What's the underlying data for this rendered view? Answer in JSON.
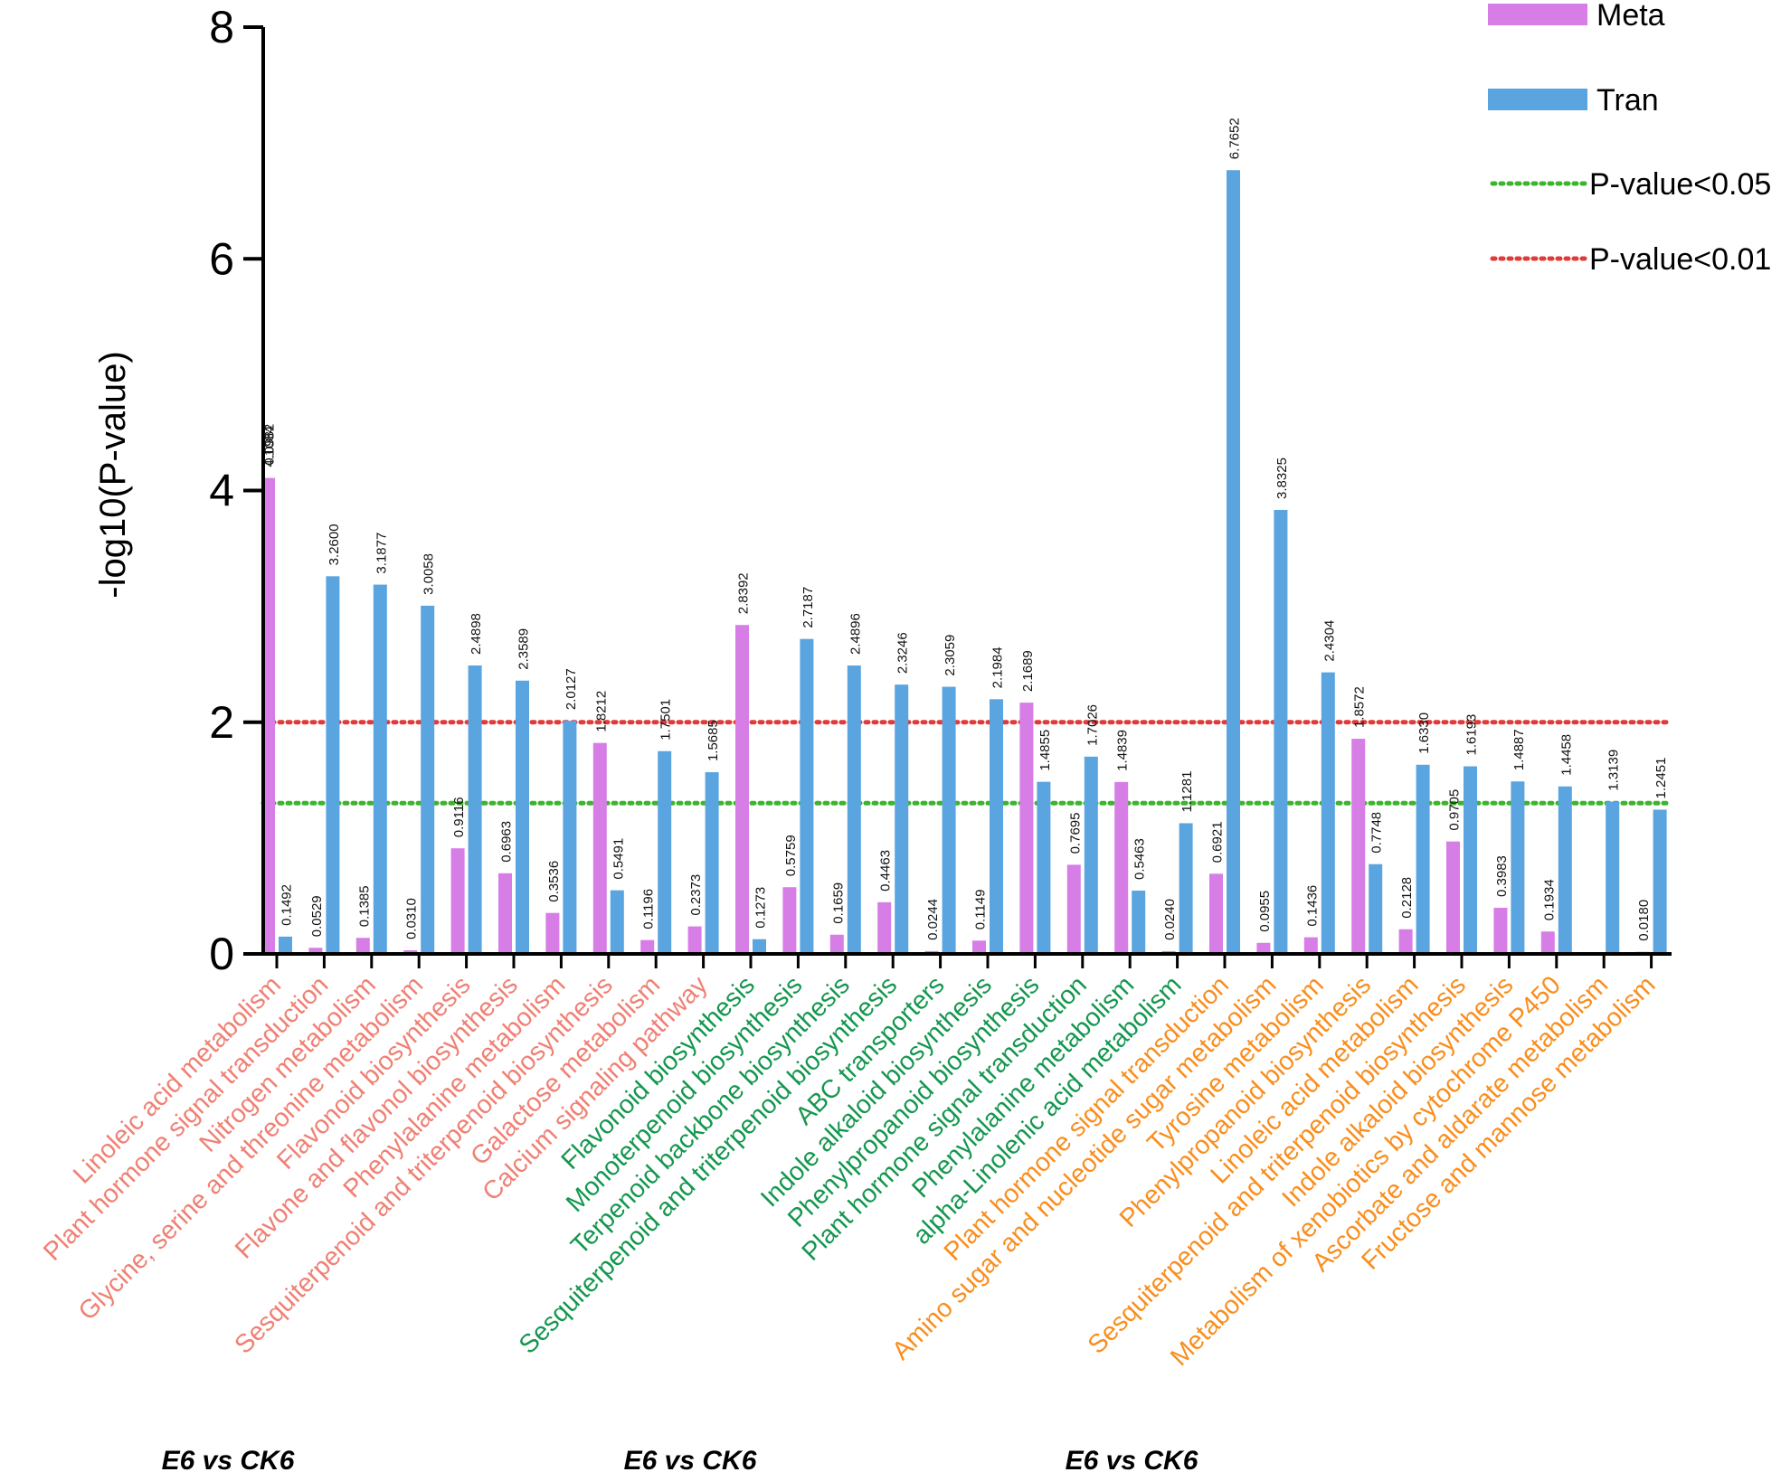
{
  "chart_data": {
    "type": "bar",
    "ylabel": "-log10(P-value)",
    "xlabel": "",
    "ylim": [
      0,
      8
    ],
    "yticks": [
      0,
      2,
      4,
      6,
      8
    ],
    "categories": [
      "Linoleic acid metabolism",
      "Plant hormone signal transduction",
      "Nitrogen metabolism",
      "Glycine, serine and threonine metabolism",
      "Flavonoid biosynthesis",
      "Flavone and flavonol biosynthesis",
      "Phenylalanine metabolism",
      "Sesquiterpenoid and triterpenoid biosynthesis",
      "Galactose metabolism",
      "Calcium signaling pathway",
      "Flavonoid biosynthesis",
      "Monoterpenoid biosynthesis",
      "Terpenoid backbone biosynthesis",
      "Sesquiterpenoid and triterpenoid biosynthesis",
      "ABC transporters",
      "Indole alkaloid biosynthesis",
      "Phenylpropanoid biosynthesis",
      "Plant hormone signal transduction",
      "Phenylalanine metabolism",
      "alpha-Linolenic acid metabolism",
      "Plant hormone signal transduction",
      "Amino sugar and nucleotide sugar metabolism",
      "Tyrosine metabolism",
      "Phenylpropanoid biosynthesis",
      "Linoleic acid metabolism",
      "Sesquiterpenoid and triterpenoid biosynthesis",
      "Indole alkaloid biosynthesis",
      "Metabolism of xenobiotics by cytochrome P450",
      "Ascorbate and aldarate metabolism",
      "Fructose and mannose metabolism"
    ],
    "category_groups": [
      0,
      0,
      0,
      0,
      0,
      0,
      0,
      0,
      0,
      0,
      1,
      1,
      1,
      1,
      1,
      1,
      1,
      1,
      1,
      1,
      2,
      2,
      2,
      2,
      2,
      2,
      2,
      2,
      2,
      2
    ],
    "series": [
      {
        "name": "Meta",
        "color": "#d67ee6",
        "values": [
          4.1084,
          0.0529,
          0.1385,
          0.031,
          0.9116,
          0.6963,
          0.3536,
          1.8212,
          0.1196,
          0.2373,
          2.8392,
          0.5759,
          0.1659,
          0.4463,
          0.0244,
          0.1149,
          2.1689,
          0.7695,
          1.4839,
          0.024,
          0.6921,
          0.0955,
          0.1436,
          1.8572,
          0.2128,
          0.9705,
          0.3983,
          0.1934,
          null,
          0.018
        ],
        "labels": [
          "4.1084",
          "0.0529",
          "0.1385",
          "0.0310",
          "0.9116",
          "0.6963",
          "0.3536",
          "1.8212",
          "0.1196",
          "0.2373",
          "2.8392",
          "0.5759",
          "0.1659",
          "0.4463",
          "0.0244",
          "0.1149",
          "2.1689",
          "0.7695",
          "1.4839",
          "0.0240",
          "0.6921",
          "0.0955",
          "0.1436",
          "1.8572",
          "0.2128",
          "0.9705",
          "0.3983",
          "0.1934",
          null,
          "0.0180"
        ]
      },
      {
        "name": "Tran",
        "color": "#5aa5e0",
        "values": [
          0.1492,
          3.26,
          3.1877,
          3.0058,
          2.4898,
          2.3589,
          2.0127,
          0.5491,
          1.7501,
          1.5685,
          0.1273,
          2.7187,
          2.4896,
          2.3246,
          2.3059,
          2.1984,
          1.4855,
          1.7026,
          0.5463,
          1.1281,
          6.7652,
          3.8325,
          2.4304,
          0.7748,
          1.633,
          1.6193,
          1.4887,
          1.4458,
          1.3139,
          1.2451
        ],
        "labels": [
          "0.1492",
          "3.2600",
          "3.1877",
          "3.0058",
          "2.4898",
          "2.3589",
          "2.0127",
          "0.5491",
          "1.7501",
          "1.5685",
          "0.1273",
          "2.7187",
          "2.4896",
          "2.3246",
          "2.3059",
          "2.1984",
          "1.4855",
          "1.7026",
          "0.5463",
          "1.1281",
          "6.7652",
          "3.8325",
          "2.4304",
          "0.7748",
          "1.6330",
          "1.6193",
          "1.4887",
          "1.4458",
          "1.3139",
          "1.2451"
        ]
      }
    ],
    "overlap_label": "0.0982",
    "thresholds": [
      {
        "name": "P-value<0.05",
        "value": 1.301,
        "color": "#3cb52c"
      },
      {
        "name": "P-value<0.01",
        "value": 2.0,
        "color": "#e03a3a"
      }
    ],
    "groups": [
      {
        "label": "E6 vs CK6",
        "color": "#f08074"
      },
      {
        "label": "E6 vs CK6",
        "color": "#14974f"
      },
      {
        "label": "E6 vs CK6",
        "color": "#f98e1e"
      }
    ],
    "legend": {
      "position": "top-right",
      "entries": [
        {
          "label": "Meta",
          "kind": "bar",
          "color": "#d67ee6"
        },
        {
          "label": "Tran",
          "kind": "bar",
          "color": "#5aa5e0"
        },
        {
          "label": "P-value<0.05",
          "kind": "dotted",
          "color": "#3cb52c"
        },
        {
          "label": "P-value<0.01",
          "kind": "dotted",
          "color": "#e03a3a"
        }
      ]
    },
    "grid": false
  }
}
